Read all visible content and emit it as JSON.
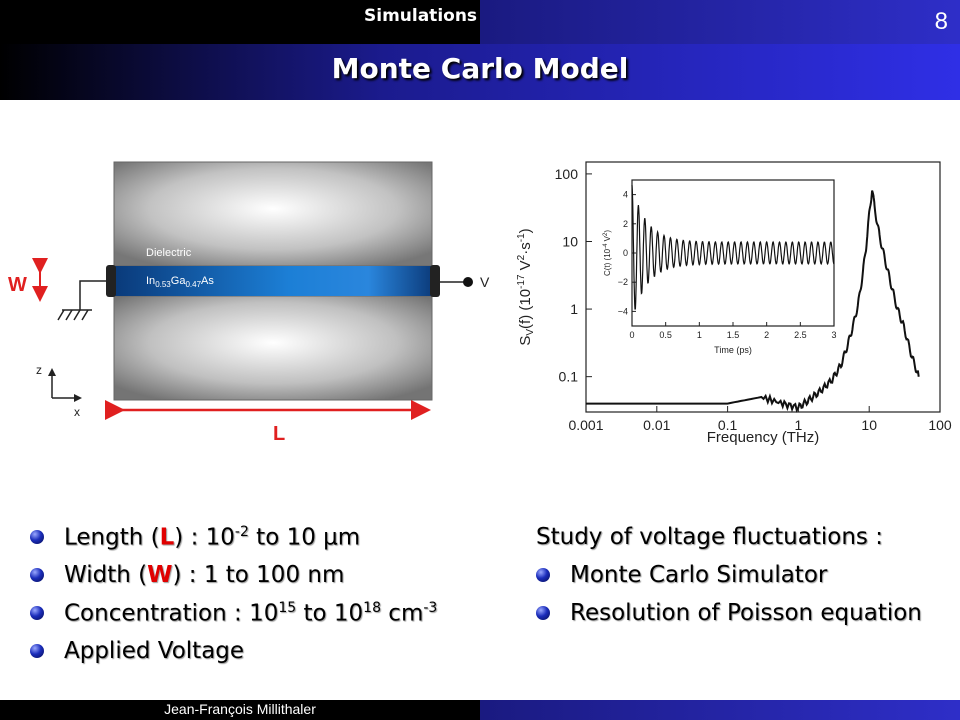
{
  "header": {
    "section": "Simulations",
    "page_number": "8"
  },
  "title": "Monte Carlo Model",
  "device": {
    "dielectric_label": "Dielectric",
    "material": {
      "in": "In",
      "in_sub": "0.53",
      "ga": "Ga",
      "ga_sub": "0.47",
      "as": "As"
    },
    "w_label": "W",
    "l_label": "L",
    "v_label": "V",
    "axis_z": "z",
    "axis_x": "x"
  },
  "chart_data": [
    {
      "type": "line",
      "xlabel": "Frequency (THz)",
      "ylabel": "S_V(f) (10^-17 V^2·s^-1)",
      "x_scale": "log",
      "y_scale": "log",
      "xlim": [
        0.001,
        100
      ],
      "ylim": [
        0.03,
        150
      ],
      "x_ticks": [
        "0.001",
        "0.01",
        "0.1",
        "1",
        "10",
        "100"
      ],
      "y_ticks": [
        "100",
        "10",
        "1",
        "0.1"
      ],
      "series": [
        {
          "x": [
            0.001,
            0.01,
            0.1,
            0.3,
            0.6,
            1,
            1.4,
            2,
            3,
            4,
            5,
            6,
            7,
            8,
            9,
            10,
            11,
            12,
            14,
            17,
            20,
            25,
            30,
            40,
            50
          ],
          "y": [
            0.04,
            0.04,
            0.04,
            0.05,
            0.04,
            0.035,
            0.045,
            0.06,
            0.09,
            0.15,
            0.3,
            0.6,
            1.2,
            3,
            8,
            25,
            60,
            30,
            12,
            5,
            2.5,
            1,
            0.6,
            0.2,
            0.1
          ]
        }
      ]
    },
    {
      "type": "line",
      "xlabel": "Time (ps)",
      "ylabel": "C(t) (10^-4 V^2)",
      "xlim": [
        0,
        3
      ],
      "ylim": [
        -5,
        5
      ],
      "x_ticks": [
        "0",
        "0.5",
        "1",
        "1.5",
        "2",
        "2.5",
        "3"
      ],
      "y_ticks": [
        "4",
        "2",
        "0",
        "-2",
        "-4"
      ],
      "series": [
        {
          "description": "damped oscillation, amplitude ~4.5 at t=0 decaying to ~0.7"
        }
      ]
    }
  ],
  "bullets_left": {
    "length": {
      "pre": "Length (",
      "sym": "L",
      "mid": ") : 10",
      "sup1": "-2",
      "post": " to 10 µm"
    },
    "width": {
      "pre": "Width (",
      "sym": "W",
      "post": ") : 1 to 100 nm"
    },
    "concentration": {
      "pre": "Concentration : 10",
      "sup1": "15",
      "mid": " to 10",
      "sup2": "18",
      "post": " cm",
      "sup3": "-3"
    },
    "voltage": "Applied Voltage"
  },
  "right": {
    "heading": "Study of voltage fluctuations :",
    "items": [
      "Monte Carlo Simulator",
      "Resolution of Poisson equation"
    ]
  },
  "footer": {
    "author": "Jean-François Millithaler"
  }
}
